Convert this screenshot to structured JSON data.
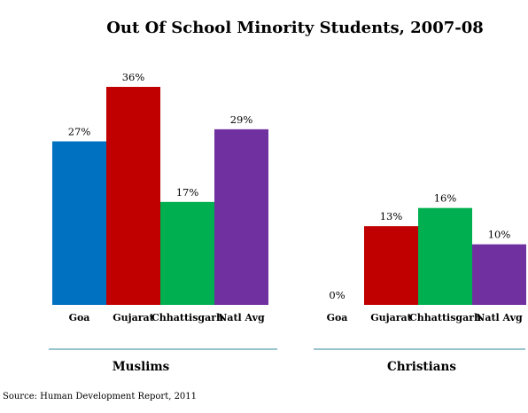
{
  "chart_data": {
    "type": "bar",
    "title": "Out Of School Minority Students, 2007-08",
    "source": "Source: Human Development Report, 2011",
    "value_suffix": "%",
    "ylim": [
      0,
      40
    ],
    "groups": [
      {
        "name": "Muslims",
        "categories": [
          "Goa",
          "Gujarat",
          "Chhattisgarh",
          "Natl Avg"
        ],
        "values": [
          27,
          36,
          17,
          29
        ],
        "colors": [
          "#0070C0",
          "#C00000",
          "#00B050",
          "#7030A0"
        ]
      },
      {
        "name": "Christians",
        "categories": [
          "Goa",
          "Gujarat",
          "Chhattisgarh",
          "Natl Avg"
        ],
        "values": [
          0,
          13,
          16,
          10
        ],
        "colors": [
          "#0070C0",
          "#C00000",
          "#00B050",
          "#7030A0"
        ]
      }
    ],
    "separator_color": "#31849B"
  }
}
